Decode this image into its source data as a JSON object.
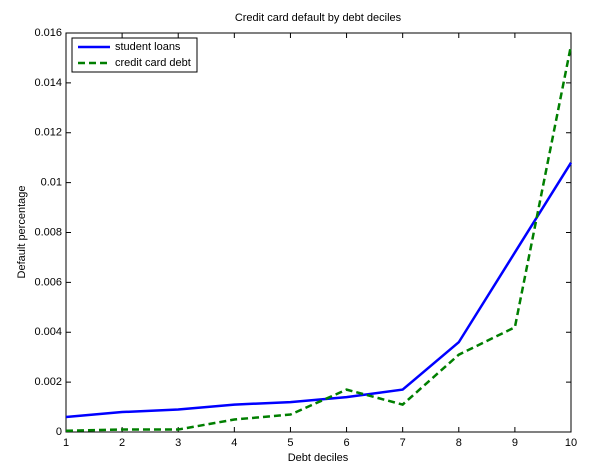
{
  "chart_data": {
    "type": "line",
    "title": "Credit card default by debt deciles",
    "x_label": "Debt deciles",
    "y_label": "Default percentage",
    "x": [
      1,
      2,
      3,
      4,
      5,
      6,
      7,
      8,
      9,
      10
    ],
    "series": [
      {
        "name": "student loans",
        "color": "#0000ff",
        "dash": "solid",
        "values": [
          0.0006,
          0.0008,
          0.0009,
          0.0011,
          0.0012,
          0.0014,
          0.0017,
          0.0036,
          0.0072,
          0.0108
        ]
      },
      {
        "name": "credit card debt",
        "color": "#007f00",
        "dash": "dashed",
        "values": [
          5e-05,
          0.0001,
          0.0001,
          0.0005,
          0.0007,
          0.0017,
          0.0011,
          0.0031,
          0.0042,
          0.0155
        ]
      }
    ],
    "xlim": [
      1,
      10
    ],
    "xticks": [
      1,
      2,
      3,
      4,
      5,
      6,
      7,
      8,
      9,
      10
    ],
    "ylim": [
      0,
      0.016
    ],
    "yticks": [
      0,
      0.002,
      0.004,
      0.006,
      0.008,
      0.01,
      0.012,
      0.014,
      0.016
    ],
    "grid": false,
    "legend": "upper-left"
  }
}
